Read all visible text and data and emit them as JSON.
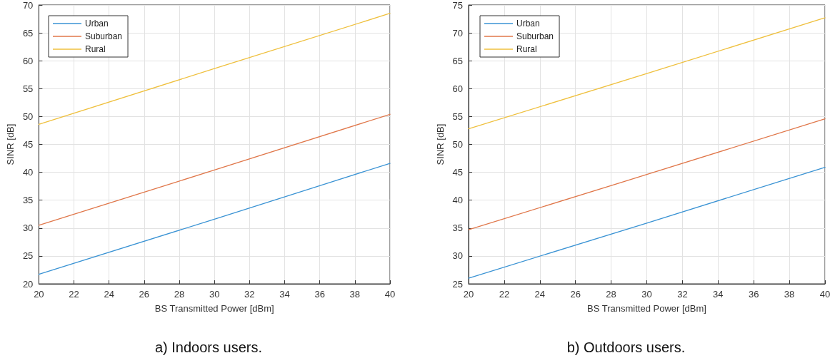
{
  "chart_data": [
    {
      "type": "line",
      "title": "a) Indoors users.",
      "xlabel": "BS Transmitted Power [dBm]",
      "ylabel": "SINR [dB]",
      "x": [
        20,
        30,
        40
      ],
      "series": [
        {
          "name": "Urban",
          "color": "#3a93d4",
          "values": [
            21.7,
            31.6,
            41.6
          ]
        },
        {
          "name": "Suburban",
          "color": "#e0774a",
          "values": [
            30.5,
            40.4,
            50.4
          ]
        },
        {
          "name": "Rural",
          "color": "#efc03e",
          "values": [
            48.6,
            58.6,
            68.5
          ]
        }
      ],
      "xlim": [
        20,
        40
      ],
      "xticks": [
        20,
        22,
        24,
        26,
        28,
        30,
        32,
        34,
        36,
        38,
        40
      ],
      "ylim": [
        20,
        70
      ],
      "yticks": [
        20,
        25,
        30,
        35,
        40,
        45,
        50,
        55,
        60,
        65,
        70
      ],
      "grid": true,
      "legend": "top left",
      "marker": "none",
      "line_style": "solid"
    },
    {
      "type": "line",
      "title": "b) Outdoors users.",
      "xlabel": "BS Transmitted Power [dBm]",
      "ylabel": "SINR [dB]",
      "x": [
        20,
        30,
        40
      ],
      "series": [
        {
          "name": "Urban",
          "color": "#3a93d4",
          "values": [
            26.0,
            35.9,
            45.9
          ]
        },
        {
          "name": "Suburban",
          "color": "#e0774a",
          "values": [
            34.7,
            44.6,
            54.6
          ]
        },
        {
          "name": "Rural",
          "color": "#efc03e",
          "values": [
            52.8,
            62.7,
            72.7
          ]
        }
      ],
      "xlim": [
        20,
        40
      ],
      "xticks": [
        20,
        22,
        24,
        26,
        28,
        30,
        32,
        34,
        36,
        38,
        40
      ],
      "ylim": [
        25,
        75
      ],
      "yticks": [
        25,
        30,
        35,
        40,
        45,
        50,
        55,
        60,
        65,
        70,
        75
      ],
      "grid": true,
      "legend": "top left",
      "marker": "none",
      "line_style": "solid"
    }
  ]
}
